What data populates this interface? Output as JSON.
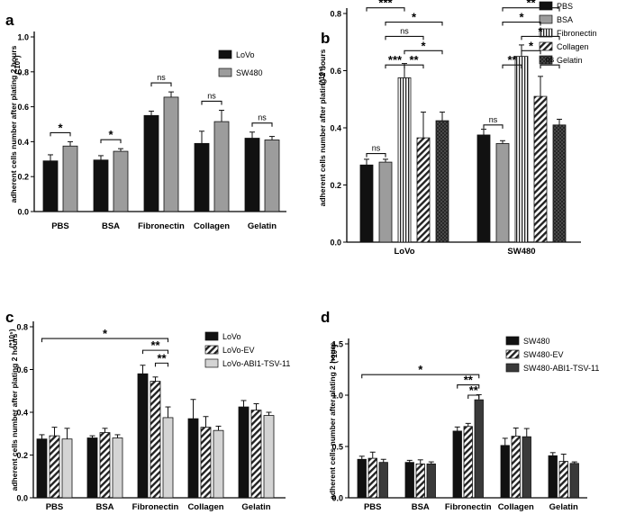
{
  "colors": {
    "black": "#111111",
    "gray": "#9c9c9c",
    "light": "#d4d4d4",
    "dark": "#3a3a3a",
    "axis": "#000000"
  },
  "chart_data": [
    {
      "panel": "a",
      "type": "bar",
      "ylabel": "adherent cells number after plating 2 hours",
      "yunit": "(*10⁵)",
      "ylim": [
        0,
        1.0
      ],
      "yticks": [
        "0.0",
        "0.2",
        "0.4",
        "0.6",
        "0.8",
        "1.0"
      ],
      "categories": [
        "PBS",
        "BSA",
        "Fibronectin",
        "Collagen",
        "Gelatin"
      ],
      "legend": "right",
      "series": [
        {
          "name": "LoVo",
          "fill": "solid",
          "values": [
            0.29,
            0.295,
            0.55,
            0.39,
            0.42
          ],
          "errors": [
            0.035,
            0.025,
            0.025,
            0.07,
            0.035
          ]
        },
        {
          "name": "SW480",
          "fill": "gray",
          "values": [
            0.375,
            0.345,
            0.655,
            0.515,
            0.41
          ],
          "errors": [
            0.025,
            0.015,
            0.03,
            0.065,
            0.02
          ]
        }
      ],
      "annotations": [
        {
          "group": 0,
          "label": "*"
        },
        {
          "group": 1,
          "label": "*"
        },
        {
          "group": 2,
          "label": "ns"
        },
        {
          "group": 3,
          "label": "ns"
        },
        {
          "group": 4,
          "label": "ns"
        }
      ]
    },
    {
      "panel": "b",
      "type": "bar",
      "ylabel": "adherent cells number after plating 2 hours",
      "yunit": "(*10⁵)",
      "ylim": [
        0,
        0.8
      ],
      "yticks": [
        "0.0",
        "0.2",
        "0.4",
        "0.6",
        "0.8"
      ],
      "categories": [
        "LoVo",
        "SW480"
      ],
      "legend": "top-right",
      "series": [
        {
          "name": "PBS",
          "fill": "solid",
          "values": [
            0.27,
            0.375
          ],
          "errors": [
            0.02,
            0.02
          ]
        },
        {
          "name": "BSA",
          "fill": "gray",
          "values": [
            0.28,
            0.345
          ],
          "errors": [
            0.01,
            0.01
          ]
        },
        {
          "name": "Fibronectin",
          "fill": "vstripe",
          "values": [
            0.575,
            0.65
          ],
          "errors": [
            0.05,
            0.04
          ]
        },
        {
          "name": "Collagen",
          "fill": "diag",
          "values": [
            0.365,
            0.51
          ],
          "errors": [
            0.09,
            0.07
          ]
        },
        {
          "name": "Gelatin",
          "fill": "cross",
          "values": [
            0.425,
            0.41
          ],
          "errors": [
            0.03,
            0.02
          ]
        }
      ],
      "brackets": [
        {
          "group": 0,
          "from": 0,
          "to": 4,
          "label": "*",
          "value": 0.92
        },
        {
          "group": 0,
          "from": 0,
          "to": 3,
          "label": "ns",
          "value": 0.87
        },
        {
          "group": 0,
          "from": 0,
          "to": 2,
          "label": "***",
          "value": 0.82
        },
        {
          "group": 0,
          "from": 1,
          "to": 4,
          "label": "*",
          "value": 0.77
        },
        {
          "group": 0,
          "from": 1,
          "to": 3,
          "label": "ns",
          "value": 0.72
        },
        {
          "group": 0,
          "from": 2,
          "to": 4,
          "label": "*",
          "value": 0.67
        },
        {
          "group": 0,
          "from": 1,
          "to": 2,
          "label": "***",
          "value": 0.62
        },
        {
          "group": 0,
          "from": 2,
          "to": 3,
          "label": "**",
          "value": 0.62
        },
        {
          "group": 0,
          "from": 0,
          "to": 1,
          "label": "ns",
          "value": 0.31
        },
        {
          "group": 1,
          "from": 0,
          "to": 4,
          "label": "ns",
          "value": 0.97
        },
        {
          "group": 1,
          "from": 0,
          "to": 3,
          "label": "ns",
          "value": 0.92
        },
        {
          "group": 1,
          "from": 0,
          "to": 2,
          "label": "ns",
          "value": 0.87
        },
        {
          "group": 1,
          "from": 1,
          "to": 4,
          "label": "**",
          "value": 0.82
        },
        {
          "group": 1,
          "from": 1,
          "to": 3,
          "label": "*",
          "value": 0.77
        },
        {
          "group": 1,
          "from": 2,
          "to": 4,
          "label": "*",
          "value": 0.72
        },
        {
          "group": 1,
          "from": 2,
          "to": 3,
          "label": "*",
          "value": 0.67
        },
        {
          "group": 1,
          "from": 3,
          "to": 4,
          "label": "ns",
          "value": 0.62
        },
        {
          "group": 1,
          "from": 1,
          "to": 2,
          "label": "**",
          "value": 0.62
        },
        {
          "group": 1,
          "from": 0,
          "to": 1,
          "label": "ns",
          "value": 0.41
        }
      ]
    },
    {
      "panel": "c",
      "type": "bar",
      "ylabel": "adherent cells number after plating 2 hours",
      "yunit": "(*10⁵)",
      "ylim": [
        0,
        0.8
      ],
      "yticks": [
        "0.0",
        "0.2",
        "0.4",
        "0.6",
        "0.8"
      ],
      "categories": [
        "PBS",
        "BSA",
        "Fibronectin",
        "Collagen",
        "Gelatin"
      ],
      "legend": "top-right",
      "series": [
        {
          "name": "LoVo",
          "fill": "solid",
          "values": [
            0.275,
            0.28,
            0.58,
            0.37,
            0.425
          ],
          "errors": [
            0.02,
            0.01,
            0.04,
            0.09,
            0.03
          ]
        },
        {
          "name": "LoVo-EV",
          "fill": "diag",
          "values": [
            0.29,
            0.305,
            0.545,
            0.33,
            0.41
          ],
          "errors": [
            0.04,
            0.02,
            0.02,
            0.05,
            0.03
          ]
        },
        {
          "name": "LoVo-ABI1-TSV-11",
          "fill": "light",
          "values": [
            0.275,
            0.28,
            0.375,
            0.315,
            0.385
          ],
          "errors": [
            0.05,
            0.015,
            0.05,
            0.02,
            0.015
          ]
        }
      ],
      "brackets": [
        {
          "fromGroup": 0,
          "toGroup": 2,
          "fromSeries": 0,
          "toSeries": 2,
          "label": "*",
          "value": 0.745
        },
        {
          "fromGroup": 2,
          "toGroup": 2,
          "fromSeries": 0,
          "toSeries": 2,
          "label": "**",
          "value": 0.69
        },
        {
          "fromGroup": 2,
          "toGroup": 2,
          "fromSeries": 1,
          "toSeries": 2,
          "label": "**",
          "value": 0.63
        }
      ]
    },
    {
      "panel": "d",
      "type": "bar",
      "ylabel": "adherent cells number after plating 2 hours",
      "yunit": "(*10⁵)",
      "ylim": [
        0,
        1.5
      ],
      "yticks": [
        "0.0",
        "0.5",
        "1.0",
        "1.5"
      ],
      "categories": [
        "PBS",
        "BSA",
        "Fibronectin",
        "Collagen",
        "Gelatin"
      ],
      "legend": "top-right",
      "series": [
        {
          "name": "SW480",
          "fill": "solid",
          "values": [
            0.375,
            0.345,
            0.65,
            0.51,
            0.41
          ],
          "errors": [
            0.03,
            0.02,
            0.04,
            0.07,
            0.03
          ]
        },
        {
          "name": "SW480-EV",
          "fill": "diag",
          "values": [
            0.385,
            0.33,
            0.695,
            0.6,
            0.355
          ],
          "errors": [
            0.06,
            0.04,
            0.03,
            0.08,
            0.07
          ]
        },
        {
          "name": "SW480-ABI1-TSV-11",
          "fill": "dark",
          "values": [
            0.345,
            0.33,
            0.955,
            0.595,
            0.335
          ],
          "errors": [
            0.03,
            0.02,
            0.05,
            0.08,
            0.015
          ]
        }
      ],
      "brackets": [
        {
          "fromGroup": 0,
          "toGroup": 2,
          "fromSeries": 0,
          "toSeries": 2,
          "label": "*",
          "value": 1.2
        },
        {
          "fromGroup": 2,
          "toGroup": 2,
          "fromSeries": 0,
          "toSeries": 2,
          "label": "**",
          "value": 1.1
        },
        {
          "fromGroup": 2,
          "toGroup": 2,
          "fromSeries": 1,
          "toSeries": 2,
          "label": "**",
          "value": 1.0
        }
      ]
    }
  ]
}
